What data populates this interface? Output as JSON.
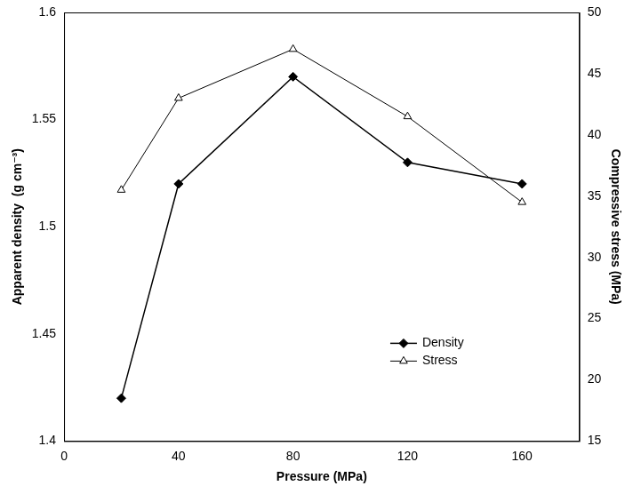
{
  "chart_data": {
    "type": "line",
    "x_label": "Pressure (MPa)",
    "y_label": "Apparent density  (g cm⁻³)",
    "y2_label": "Compressive stress (MPa)",
    "x": [
      20,
      40,
      80,
      120,
      160
    ],
    "series": [
      {
        "name": "Density",
        "color": "#000000",
        "marker": "diamond",
        "values": [
          1.42,
          1.52,
          1.57,
          1.53,
          1.52
        ]
      },
      {
        "name": "Stress",
        "color": "#000000",
        "marker": "triangle-open",
        "axis": "y2",
        "values": [
          35.5,
          43,
          47,
          41.5,
          34.5
        ]
      }
    ],
    "xlim": [
      0,
      180
    ],
    "xticks": [
      0,
      40,
      80,
      120,
      160
    ],
    "ylim": [
      1.4,
      1.6
    ],
    "yticks": [
      1.4,
      1.45,
      1.5,
      1.55,
      1.6
    ],
    "y2lim": [
      15,
      50
    ],
    "y2ticks": [
      15,
      20,
      25,
      30,
      35,
      40,
      45,
      50
    ],
    "grid": false,
    "legend": "lower right"
  }
}
